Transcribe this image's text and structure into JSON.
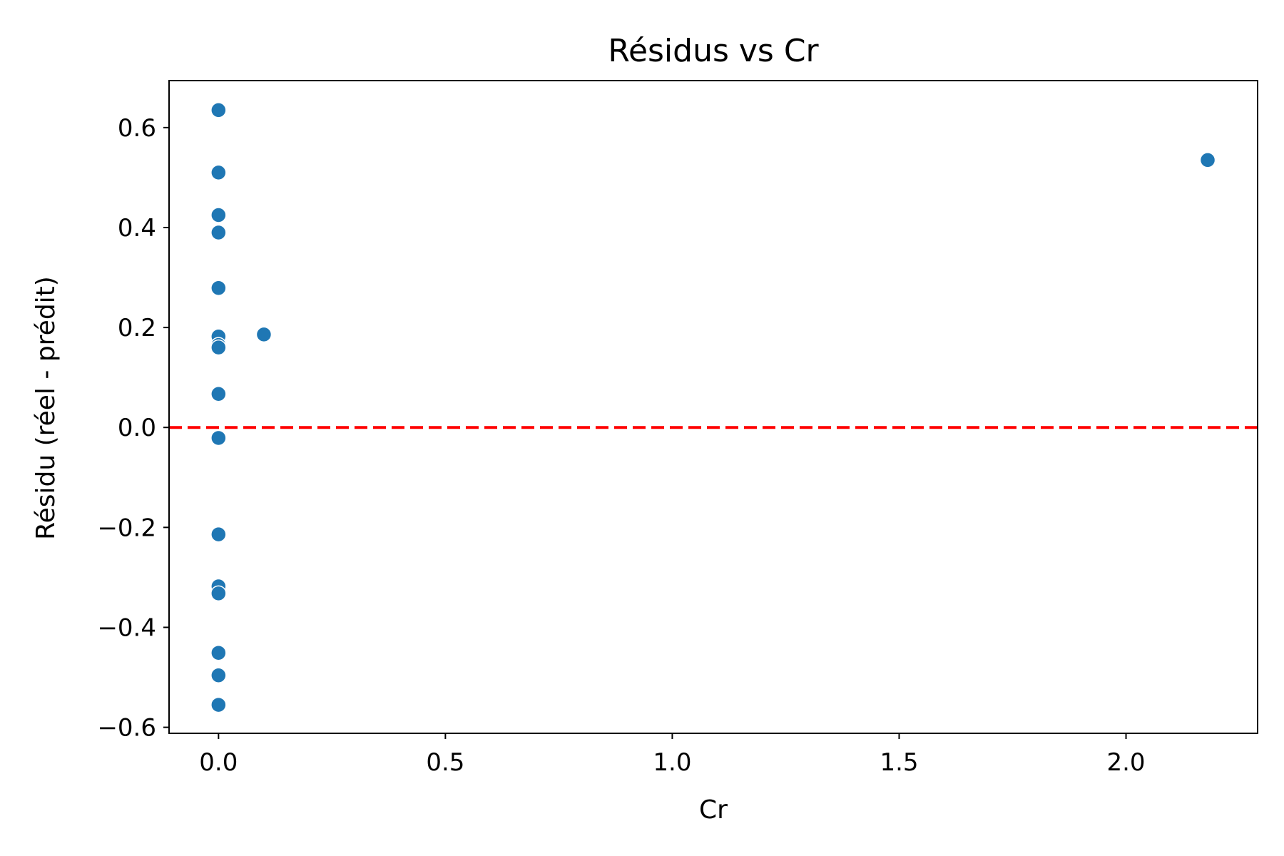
{
  "chart_data": {
    "type": "scatter",
    "title": "Résidus vs Cr",
    "xlabel": "Cr",
    "ylabel": "Résidu (réel - prédit)",
    "xlim": [
      -0.109,
      2.29
    ],
    "ylim": [
      -0.612,
      0.694
    ],
    "xticks": [
      0.0,
      0.5,
      1.0,
      1.5,
      2.0
    ],
    "xtick_labels": [
      "0.0",
      "0.5",
      "1.0",
      "1.5",
      "2.0"
    ],
    "yticks": [
      -0.6,
      -0.4,
      -0.2,
      0.0,
      0.2,
      0.4,
      0.6
    ],
    "ytick_labels": [
      "−0.6",
      "−0.4",
      "−0.2",
      "0.0",
      "0.2",
      "0.4",
      "0.6"
    ],
    "reference_line": {
      "y": 0.0,
      "color": "#ff0000",
      "style": "dashed"
    },
    "marker_color": "#1f77b4",
    "grid": false,
    "points": [
      {
        "x": 0.0,
        "y": 0.635
      },
      {
        "x": 0.0,
        "y": 0.51
      },
      {
        "x": 0.0,
        "y": 0.425
      },
      {
        "x": 0.0,
        "y": 0.39
      },
      {
        "x": 0.0,
        "y": 0.279
      },
      {
        "x": 0.0,
        "y": 0.182
      },
      {
        "x": 0.0,
        "y": 0.165
      },
      {
        "x": 0.0,
        "y": 0.16
      },
      {
        "x": 0.0,
        "y": 0.067
      },
      {
        "x": 0.0,
        "y": -0.021
      },
      {
        "x": 0.0,
        "y": -0.214
      },
      {
        "x": 0.0,
        "y": -0.318
      },
      {
        "x": 0.0,
        "y": -0.332
      },
      {
        "x": 0.0,
        "y": -0.451
      },
      {
        "x": 0.0,
        "y": -0.496
      },
      {
        "x": 0.0,
        "y": -0.555
      },
      {
        "x": 0.1,
        "y": 0.186
      },
      {
        "x": 2.18,
        "y": 0.535
      }
    ]
  }
}
